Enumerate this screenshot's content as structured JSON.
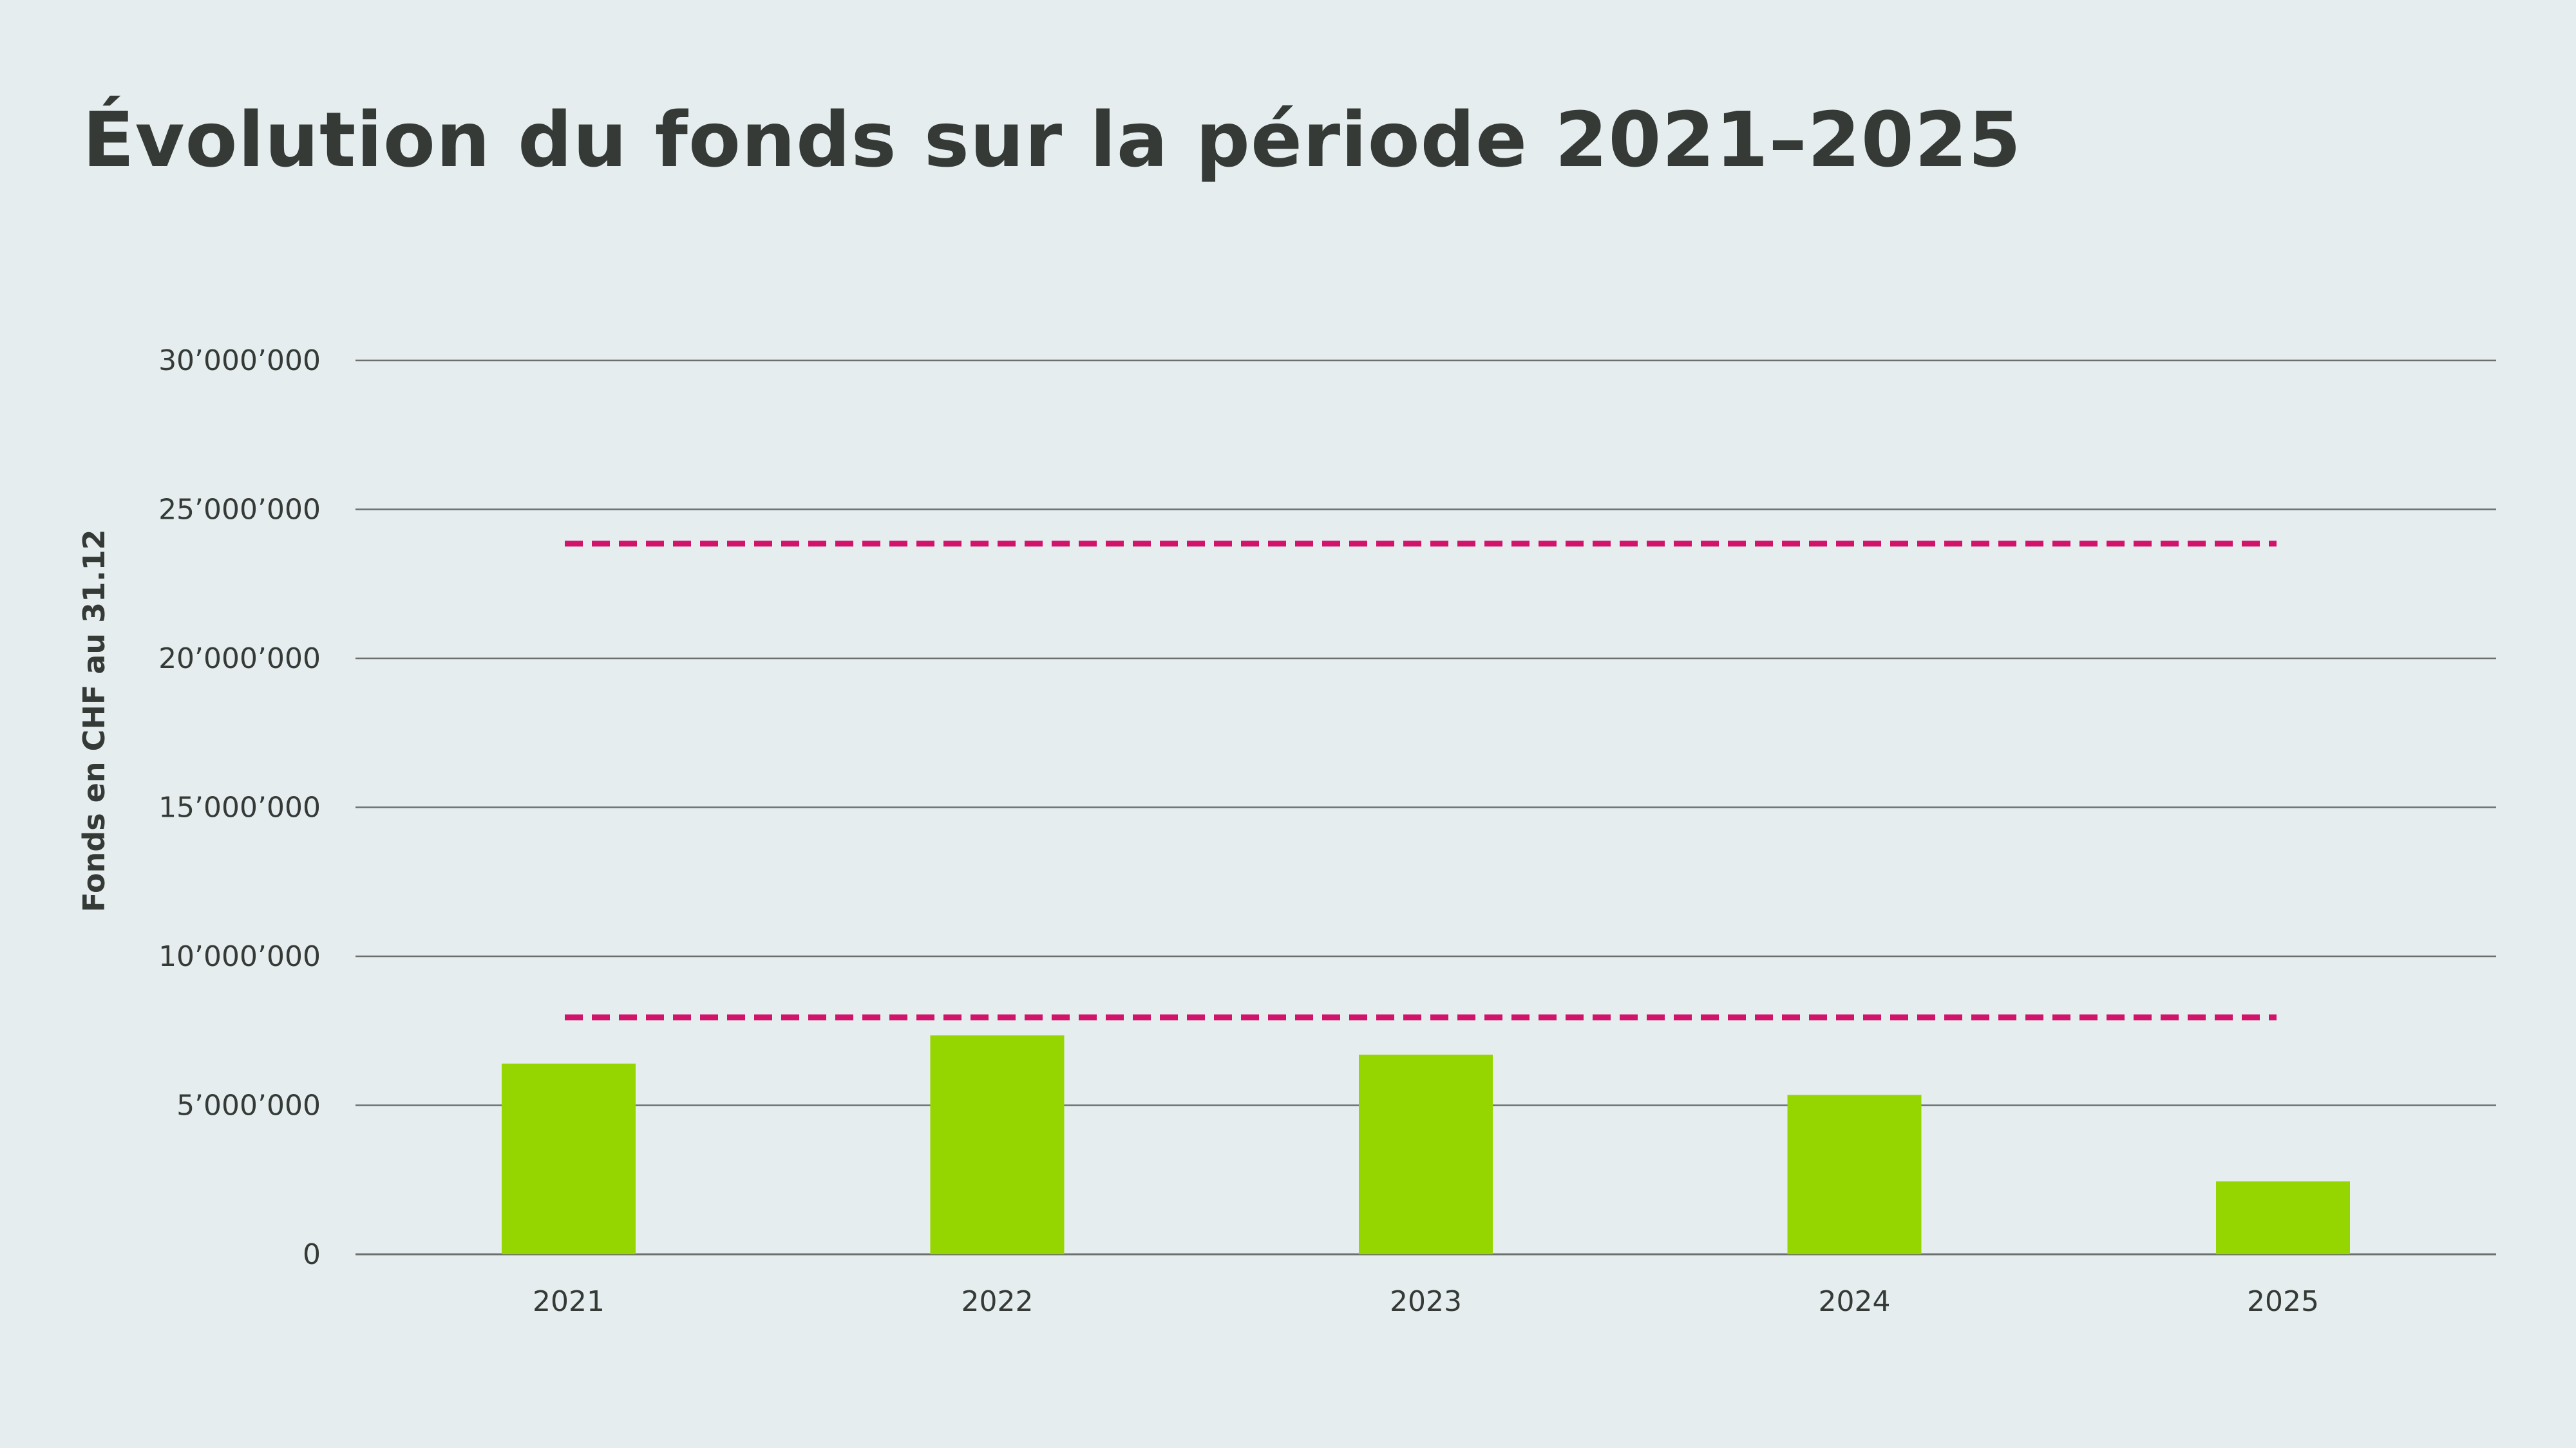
{
  "title": "Évolution du fonds sur la période 2021–2025",
  "colors": {
    "background": "#e5edee",
    "text": "#353a37",
    "bar": "#96d600",
    "reference_line": "#d2136b",
    "grid": "#6c6f6e"
  },
  "chart_data": {
    "type": "bar",
    "title": "Évolution du fonds sur la période 2021–2025",
    "xlabel": "",
    "ylabel": "Fonds en CHF au 31.12",
    "categories": [
      "2021",
      "2022",
      "2023",
      "2024",
      "2025"
    ],
    "series": [
      {
        "values": [
          6400000,
          7350000,
          6700000,
          5350000,
          2450000
        ]
      }
    ],
    "reference_lines": [
      {
        "value": 23850000,
        "style": "dashed",
        "from_category": "2021",
        "to_category": "2025"
      },
      {
        "value": 7950000,
        "style": "dashed",
        "from_category": "2021",
        "to_category": "2025"
      }
    ],
    "ylim": [
      0,
      30000000
    ],
    "yticks": [
      0,
      5000000,
      10000000,
      15000000,
      20000000,
      25000000,
      30000000
    ],
    "ytick_labels": [
      "0",
      "5’000’000",
      "10’000’000",
      "15’000’000",
      "20’000’000",
      "25’000’000",
      "30’000’000"
    ],
    "grid": true,
    "legend": "none"
  }
}
